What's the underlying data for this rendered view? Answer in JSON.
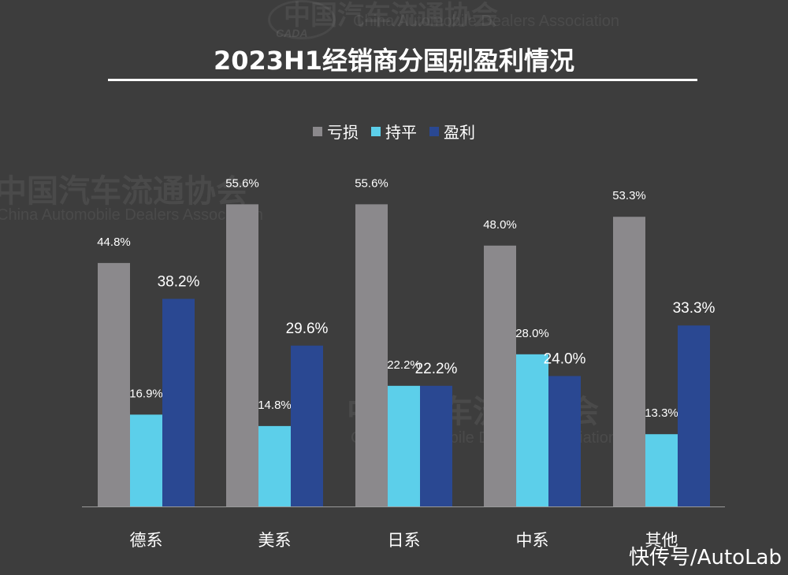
{
  "watermark": {
    "cn": "中国汽车流通协会",
    "en": "China Automobile Dealers Association",
    "logo": "CADA"
  },
  "source_credit": "快传号/AutoLab",
  "chart_data": {
    "type": "bar",
    "title": "2023H1经销商分国别盈利情况",
    "categories": [
      "德系",
      "美系",
      "日系",
      "中系",
      "其他"
    ],
    "series": [
      {
        "name": "亏损",
        "color": "#8b898c",
        "values": [
          44.8,
          55.6,
          55.6,
          48.0,
          53.3
        ],
        "labels": [
          "44.8%",
          "55.6%",
          "55.6%",
          "48.0%",
          "53.3%"
        ]
      },
      {
        "name": "持平",
        "color": "#5ccfea",
        "values": [
          16.9,
          14.8,
          22.2,
          28.0,
          13.3
        ],
        "labels": [
          "16.9%",
          "14.8%",
          "22.2%",
          "28.0%",
          "13.3%"
        ]
      },
      {
        "name": "盈利",
        "color": "#2a4892",
        "values": [
          38.2,
          29.6,
          22.2,
          24.0,
          33.3
        ],
        "labels": [
          "38.2%",
          "29.6%",
          "22.2%",
          "24.0%",
          "33.3%"
        ]
      }
    ],
    "legend_position": "top",
    "grid": false,
    "ylim": [
      0,
      60
    ],
    "value_unit": "%"
  }
}
